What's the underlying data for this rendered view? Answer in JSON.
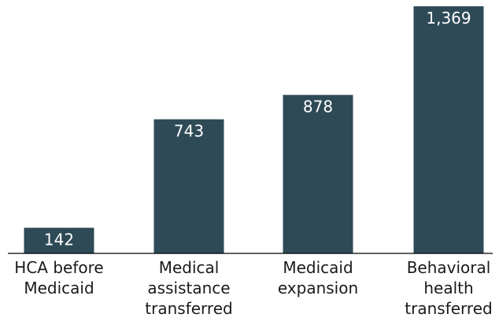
{
  "chart_data": {
    "type": "bar",
    "categories": [
      [
        "HCA before",
        "Medicaid"
      ],
      [
        "Medical",
        "assistance",
        "transferred"
      ],
      [
        "Medicaid",
        "expansion"
      ],
      [
        "Behavioral",
        "health",
        "transferred"
      ]
    ],
    "values": [
      142,
      743,
      878,
      1369
    ],
    "value_labels": [
      "142",
      "743",
      "878",
      "1,369"
    ],
    "bar_color": "#2e4a57",
    "label_color": "#ffffff",
    "ylim": [
      0,
      1369
    ],
    "grid": false,
    "legend": "none"
  }
}
